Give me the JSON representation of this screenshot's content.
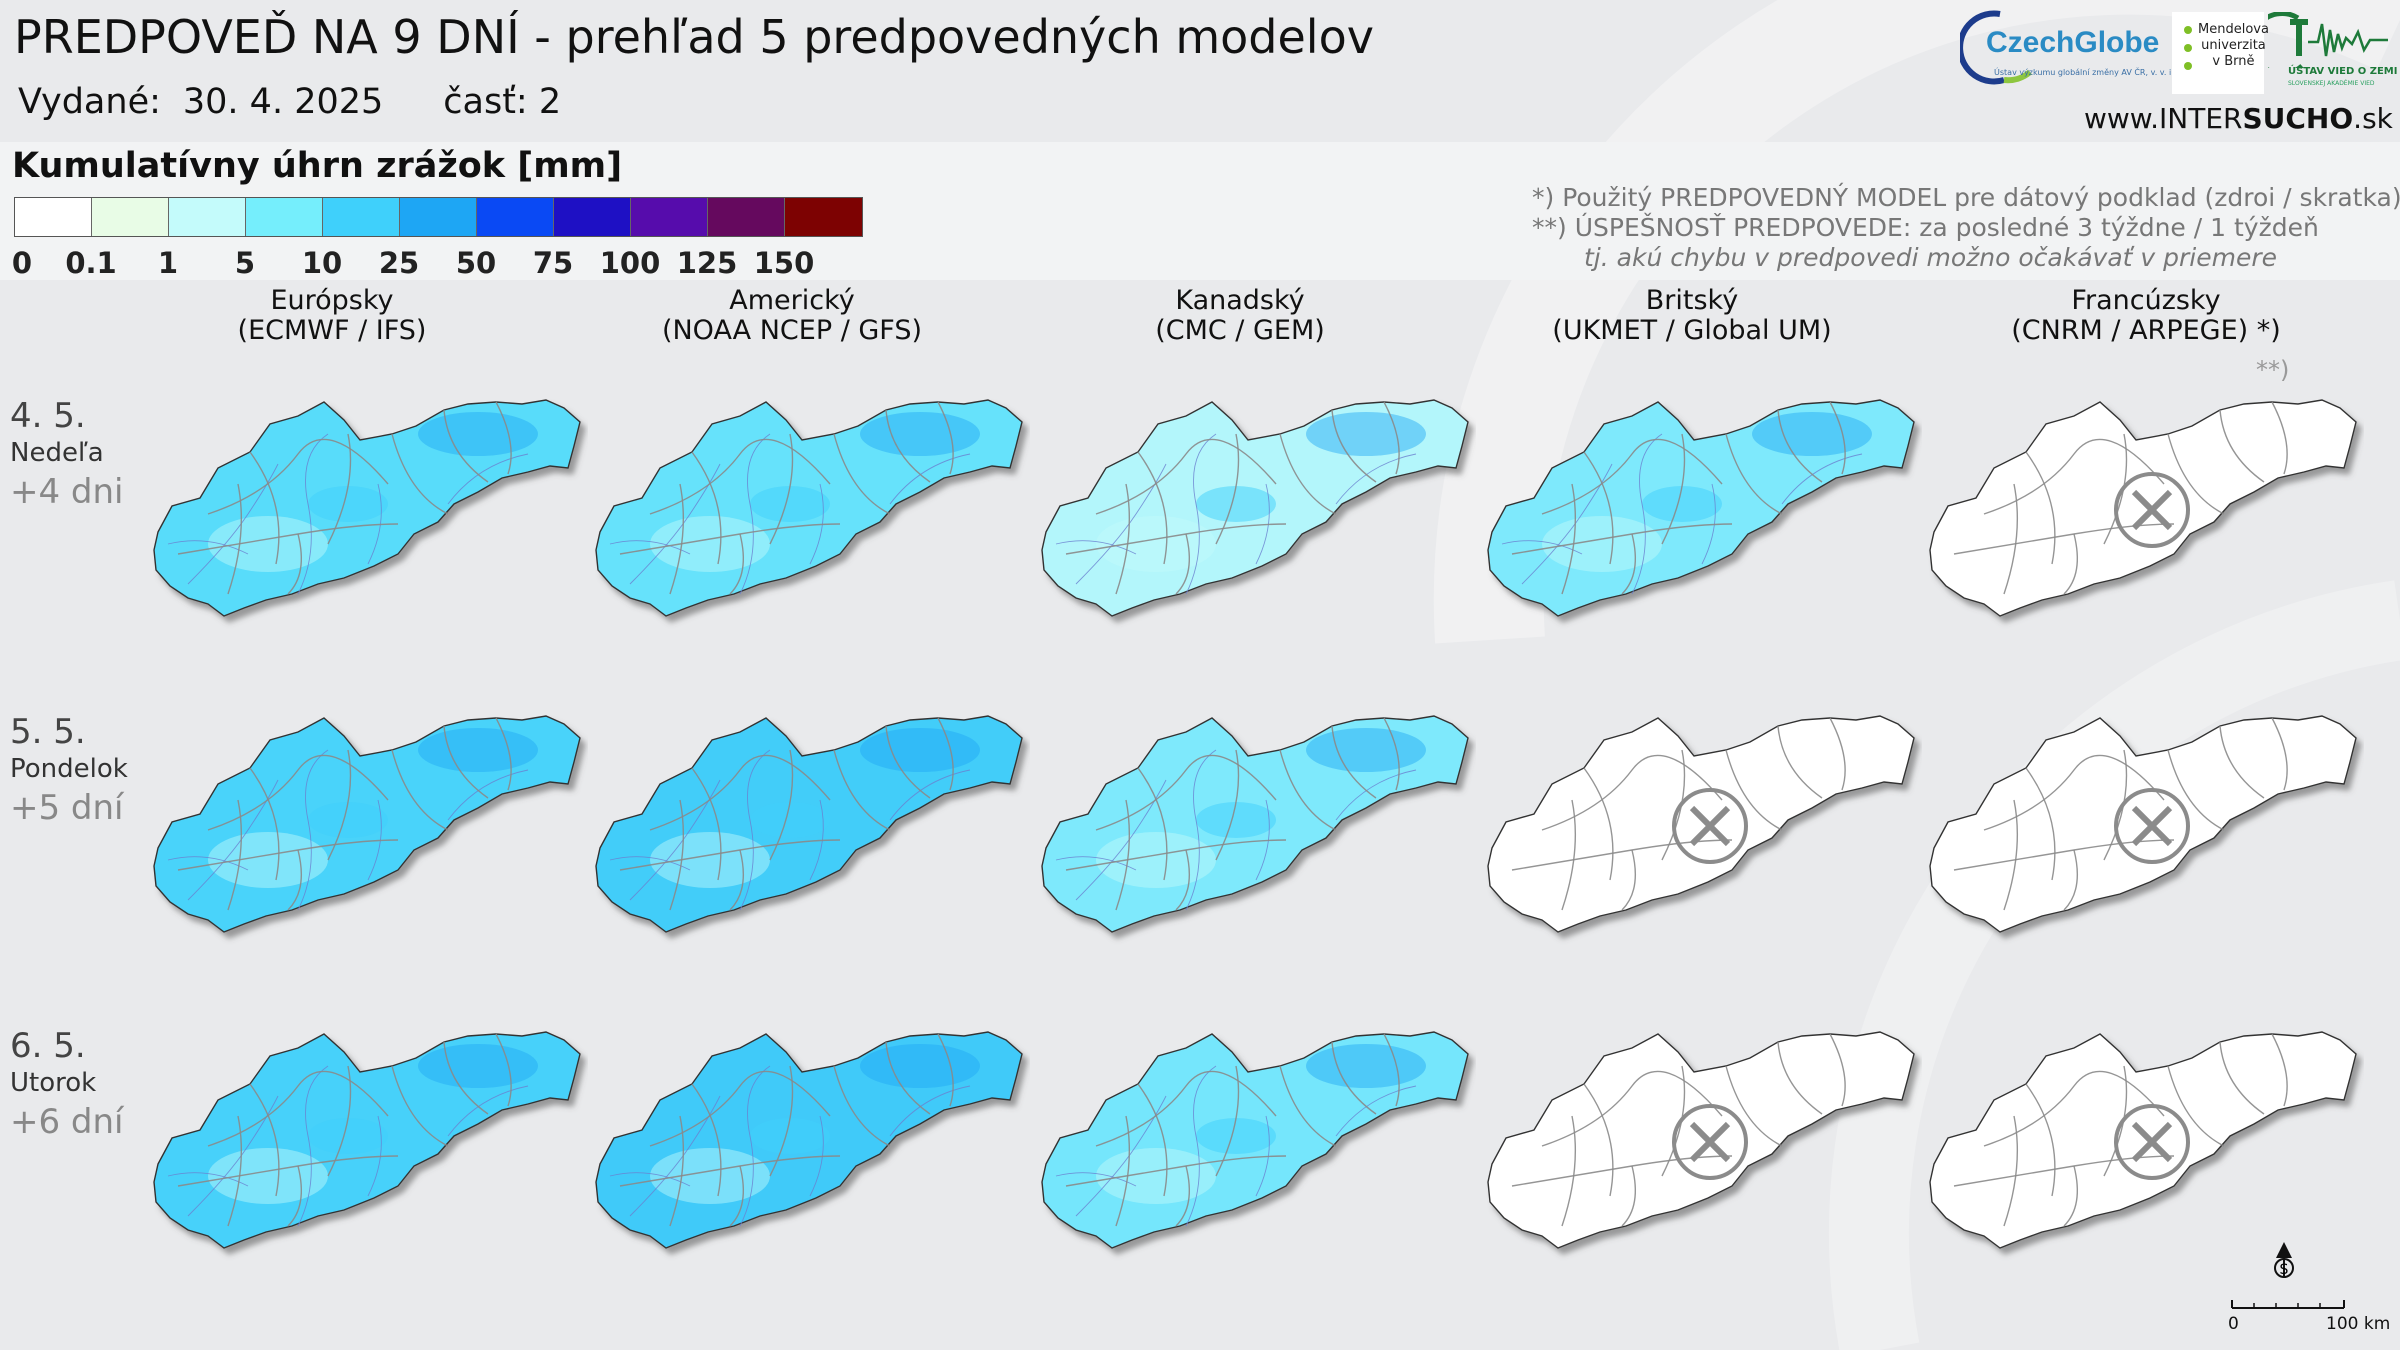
{
  "header": {
    "title": "PREDPOVEĎ NA 9 DNÍ - prehľad 5 predpovedných modelov",
    "issued_label": "Vydané:",
    "issued_date": "30. 4. 2025",
    "part": "časť: 2"
  },
  "legend": {
    "title": "Kumulatívny úhrn zrážok [mm]",
    "colors": [
      "#ffffff",
      "#e8fce6",
      "#c4fbfb",
      "#75eefc",
      "#3fd0fb",
      "#1ea6f4",
      "#0a49f4",
      "#1e10c4",
      "#560cac",
      "#65095e",
      "#7d0202"
    ],
    "labels": [
      "0",
      "0.1",
      "1",
      "5",
      "10",
      "25",
      "50",
      "75",
      "100",
      "125",
      "150"
    ]
  },
  "notes": {
    "line1": "*)   Použitý PREDPOVEDNÝ MODEL pre dátový podklad (zdroi / skratka)",
    "line2": "**) ÚSPEŠNOSŤ PREDPOVEDE: za posledné 3 týždne / 1 týždeň",
    "line3": "tj. akú chybu v predpovedi možno očakávať v priemere"
  },
  "logos": {
    "czechglobe": "CzechGlobe",
    "czechglobe_sub": "Ústav výzkumu globální změny AV ČR, v. v. i.",
    "mendelu": [
      "Mendelova",
      "univerzita",
      "v Brně"
    ],
    "ustav": "ÚSTAV VIED O ZEMI",
    "ustav_sub": "SLOVENSKEJ AKADÉMIE VIED"
  },
  "website": {
    "pre": "www.INTER",
    "bold": "SUCHO",
    "post": ".sk"
  },
  "models": [
    {
      "name": "Európsky",
      "code": "(ECMWF / IFS)"
    },
    {
      "name": "Americký",
      "code": "(NOAA NCEP / GFS)"
    },
    {
      "name": "Kanadský",
      "code": "(CMC / GEM)"
    },
    {
      "name": "Britský",
      "code": "(UKMET / Global UM)"
    },
    {
      "name": "Francúzsky",
      "code": "(CNRM / ARPEGE) *)"
    }
  ],
  "success_marker": "**)",
  "days": [
    {
      "date": "4. 5.",
      "weekday": "Nedeľa",
      "offset": "+4 dni"
    },
    {
      "date": "5. 5.",
      "weekday": "Pondelok",
      "offset": "+5 dní"
    },
    {
      "date": "6. 5.",
      "weekday": "Utorok",
      "offset": "+6 dní"
    }
  ],
  "availability": [
    [
      true,
      true,
      true,
      true,
      false
    ],
    [
      true,
      true,
      true,
      false,
      false
    ],
    [
      true,
      true,
      true,
      false,
      false
    ]
  ],
  "map_fill": [
    [
      "#58dcfa",
      "#66e2fb",
      "#b3f6fb",
      "#7ee9fc",
      "#ffffff"
    ],
    [
      "#48d3fa",
      "#42cdf9",
      "#7ee9fc",
      "#ffffff",
      "#ffffff"
    ],
    [
      "#46d1fa",
      "#3fcaf9",
      "#74e6fc",
      "#ffffff",
      "#ffffff"
    ]
  ],
  "scale": {
    "start": "0",
    "end": "100 km"
  },
  "north_symbol": "S"
}
